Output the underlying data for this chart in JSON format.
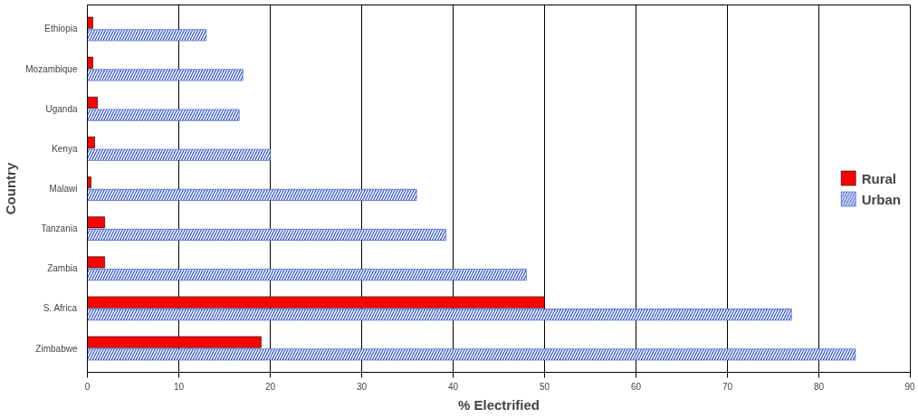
{
  "chart_data": {
    "type": "bar",
    "orientation": "horizontal",
    "xlabel": "% Electrified",
    "ylabel": "Country",
    "categories": [
      "Ethiopia",
      "Mozambique",
      "Uganda",
      "Kenya",
      "Malawi",
      "Tanzania",
      "Zambia",
      "S. Africa",
      "Zimbabwe"
    ],
    "series": [
      {
        "name": "Rural",
        "color": "#ff0000",
        "values": [
          0.6,
          0.6,
          1.1,
          0.8,
          0.4,
          1.9,
          1.9,
          50,
          19
        ]
      },
      {
        "name": "Urban",
        "color": "#3355cc",
        "values": [
          13,
          17,
          16.6,
          20,
          36,
          39.2,
          48,
          77,
          84
        ]
      }
    ],
    "xlim": [
      0,
      90
    ],
    "xticks": [
      0,
      10,
      20,
      30,
      40,
      50,
      60,
      70,
      80,
      90
    ],
    "grid": "x",
    "legend": "right"
  }
}
